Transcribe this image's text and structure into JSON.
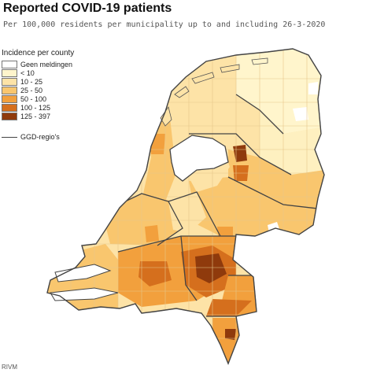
{
  "title": "Reported COVID-19 patients",
  "subtitle": "Per 100,000 residents per municipality up to and including 26-3-2020",
  "legend": {
    "title": "Incidence per county",
    "items": [
      {
        "label": "Geen meldingen",
        "color": "#ffffff"
      },
      {
        "label": "< 10",
        "color": "#fff5cc"
      },
      {
        "label": "10 - 25",
        "color": "#fde3a7"
      },
      {
        "label": "25 - 50",
        "color": "#f9c66e"
      },
      {
        "label": "50 - 100",
        "color": "#f2a03d"
      },
      {
        "label": "100 - 125",
        "color": "#d56f1d"
      },
      {
        "label": "125 - 397",
        "color": "#8f3a0c"
      }
    ],
    "boundary_label": "GGD-regio's"
  },
  "map": {
    "region": "Netherlands",
    "water_color": "#ffffff",
    "boundary_color": "#444444"
  },
  "source": "RIVM"
}
